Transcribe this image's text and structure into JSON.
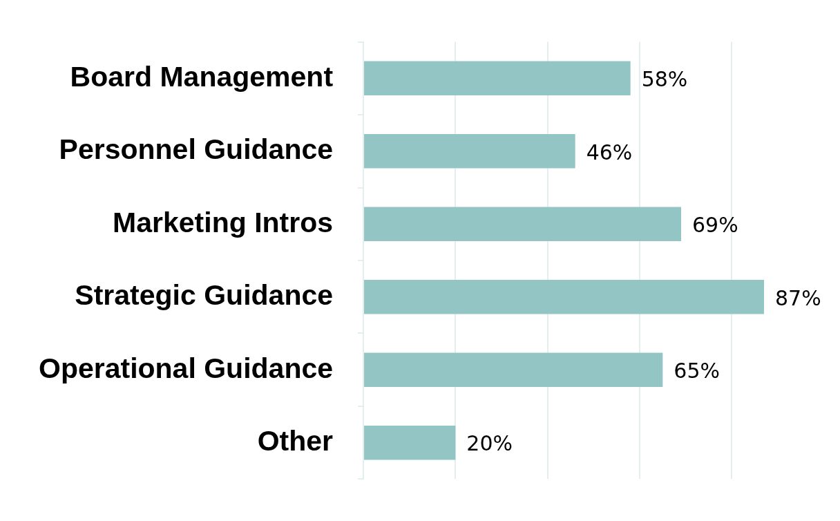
{
  "chart_data": {
    "type": "bar",
    "orientation": "horizontal",
    "categories": [
      "Board Management",
      "Personnel Guidance",
      "Marketing Intros",
      "Strategic Guidance",
      "Operational Guidance",
      "Other"
    ],
    "values": [
      58,
      46,
      69,
      87,
      65,
      20
    ],
    "value_labels": [
      "58%",
      "46%",
      "69%",
      "87%",
      "65%",
      "20%"
    ],
    "color": "#93c5c4",
    "xticks": [
      {
        "value": 0,
        "label": null
      },
      {
        "value": 20,
        "label": null
      },
      {
        "value": 40,
        "label": null
      },
      {
        "value": 60,
        "label": null
      },
      {
        "value": 80,
        "label": null
      }
    ],
    "grid": "x",
    "tick_labels": "y"
  }
}
